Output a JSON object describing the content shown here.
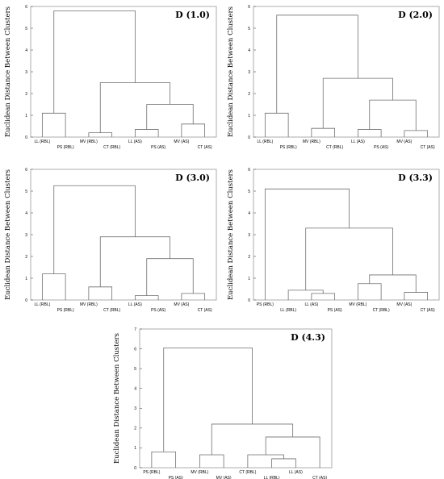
{
  "chart_data": [
    {
      "type": "dendrogram",
      "title": "D (1.0)",
      "ylabel": "Euclidean Distance Between Clusters",
      "ylim": [
        0,
        6
      ],
      "yticks": [
        "0",
        "1",
        "2",
        "3",
        "4",
        "5",
        "6"
      ],
      "leaves": [
        "LL (RBL)",
        "PS (RBL)",
        "MV (RBL)",
        "CT (RBL)",
        "LL (AS)",
        "PS (AS)",
        "MV (AS)",
        "CT (AS)"
      ],
      "merges": [
        {
          "a": 4,
          "b": 5,
          "h": 0.35
        },
        {
          "a": 2,
          "b": 3,
          "h": 0.2
        },
        {
          "a": 6,
          "b": 7,
          "h": 0.6
        },
        {
          "a": 8,
          "b": 10,
          "h": 1.5
        },
        {
          "a": 0,
          "b": 1,
          "h": 1.1
        },
        {
          "a": 9,
          "b": 11,
          "h": 2.5
        },
        {
          "a": 12,
          "b": 13,
          "h": 5.8
        }
      ]
    },
    {
      "type": "dendrogram",
      "title": "D (2.0)",
      "ylabel": "Euclidean Distance Between Clusters",
      "ylim": [
        0,
        6
      ],
      "yticks": [
        "0",
        "1",
        "2",
        "3",
        "4",
        "5",
        "6"
      ],
      "leaves": [
        "LL (RBL)",
        "PS (RBL)",
        "MV (RBL)",
        "CT (RBL)",
        "LL (AS)",
        "PS (AS)",
        "MV (AS)",
        "CT (AS)"
      ],
      "merges": [
        {
          "a": 6,
          "b": 7,
          "h": 0.3
        },
        {
          "a": 4,
          "b": 5,
          "h": 0.35
        },
        {
          "a": 2,
          "b": 3,
          "h": 0.4
        },
        {
          "a": 0,
          "b": 1,
          "h": 1.1
        },
        {
          "a": 8,
          "b": 9,
          "h": 1.7
        },
        {
          "a": 10,
          "b": 12,
          "h": 2.7
        },
        {
          "a": 11,
          "b": 13,
          "h": 5.6
        }
      ]
    },
    {
      "type": "dendrogram",
      "title": "D (3.0)",
      "ylabel": "Euclidean Distance Between Clusters",
      "ylim": [
        0,
        6
      ],
      "yticks": [
        "0",
        "1",
        "2",
        "3",
        "4",
        "5",
        "6"
      ],
      "leaves": [
        "LL (RBL)",
        "PS (RBL)",
        "MV (RBL)",
        "CT (RBL)",
        "LL (AS)",
        "PS (AS)",
        "MV (AS)",
        "CT (AS)"
      ],
      "merges": [
        {
          "a": 4,
          "b": 5,
          "h": 0.2
        },
        {
          "a": 6,
          "b": 7,
          "h": 0.3
        },
        {
          "a": 2,
          "b": 3,
          "h": 0.6
        },
        {
          "a": 0,
          "b": 1,
          "h": 1.2
        },
        {
          "a": 8,
          "b": 9,
          "h": 1.9
        },
        {
          "a": 10,
          "b": 12,
          "h": 2.9
        },
        {
          "a": 11,
          "b": 13,
          "h": 5.25
        }
      ]
    },
    {
      "type": "dendrogram",
      "title": "D (3.3)",
      "ylabel": "Euclidean Distance Between Clusters",
      "ylim": [
        0,
        6
      ],
      "yticks": [
        "0",
        "1",
        "2",
        "3",
        "4",
        "5",
        "6"
      ],
      "leaves": [
        "PS (RBL)",
        "LL (RBL)",
        "LL (AS)",
        "PS (AS)",
        "MV (RBL)",
        "CT (RBL)",
        "MV (AS)",
        "CT (AS)"
      ],
      "merges": [
        {
          "a": 2,
          "b": 3,
          "h": 0.3
        },
        {
          "a": 6,
          "b": 7,
          "h": 0.35
        },
        {
          "a": 1,
          "b": 8,
          "h": 0.45
        },
        {
          "a": 4,
          "b": 5,
          "h": 0.75
        },
        {
          "a": 11,
          "b": 9,
          "h": 1.15
        },
        {
          "a": 10,
          "b": 12,
          "h": 3.3
        },
        {
          "a": 0,
          "b": 13,
          "h": 5.1
        }
      ]
    },
    {
      "type": "dendrogram",
      "title": "D (4.3)",
      "ylabel": "Euclidean Distance Between Clusters",
      "ylim": [
        0,
        7
      ],
      "yticks": [
        "0",
        "1",
        "2",
        "3",
        "4",
        "5",
        "6",
        "7"
      ],
      "leaves": [
        "PS (RBL)",
        "PS (AS)",
        "MV (RBL)",
        "MV (AS)",
        "CT (RBL)",
        "LL (RBL)",
        "LL (AS)",
        "CT (AS)"
      ],
      "merges": [
        {
          "a": 5,
          "b": 6,
          "h": 0.45
        },
        {
          "a": 4,
          "b": 8,
          "h": 0.65
        },
        {
          "a": 2,
          "b": 3,
          "h": 0.65
        },
        {
          "a": 0,
          "b": 1,
          "h": 0.8
        },
        {
          "a": 9,
          "b": 7,
          "h": 1.55
        },
        {
          "a": 10,
          "b": 12,
          "h": 2.2
        },
        {
          "a": 11,
          "b": 13,
          "h": 6.05
        }
      ]
    }
  ]
}
